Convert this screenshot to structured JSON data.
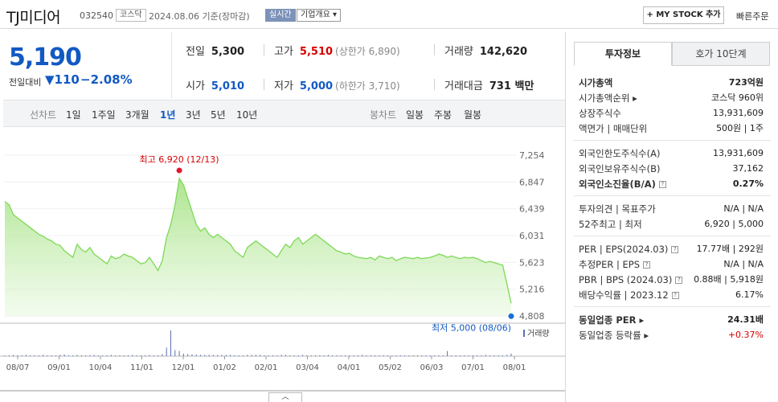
{
  "header": {
    "name": "TJ미디어",
    "code": "032540",
    "market": "코스닥",
    "date": "2024.08.06 기준(장마감)",
    "realtime": "실시간",
    "corp_info": "기업개요 ▾",
    "mystock": "+ MY STOCK 추가",
    "quick_order": "빠른주문"
  },
  "price": {
    "current": "5,190",
    "change_label": "전일대비",
    "change": "▼110",
    "change_pct": "−2.08%"
  },
  "stats": {
    "prev_label": "전일",
    "prev": "5,300",
    "high_label": "고가",
    "high": "5,510",
    "upper_limit": "(상한가 6,890)",
    "volume_label": "거래량",
    "volume": "142,620",
    "open_label": "시가",
    "open": "5,010",
    "low_label": "저가",
    "low": "5,000",
    "lower_limit": "(하한가 3,710)",
    "amount_label": "거래대금",
    "amount": "731 백만"
  },
  "tabs": {
    "line_label": "선차트",
    "periods": [
      "1일",
      "1주일",
      "3개월",
      "1년",
      "3년",
      "5년",
      "10년"
    ],
    "candle_label": "봉차트",
    "candles": [
      "일봉",
      "주봉",
      "월봉"
    ]
  },
  "chart_data": {
    "type": "area",
    "title": "",
    "high_annotation": "최고 6,920 (12/13)",
    "low_annotation": "최저 5,000 (08/06)",
    "volume_label": "거래량",
    "y_ticks": [
      "7,254",
      "6,847",
      "6,439",
      "6,031",
      "5,623",
      "5,216",
      "4,808"
    ],
    "ylim": [
      4808,
      7254
    ],
    "x_ticks": [
      "08/07",
      "09/01",
      "10/04",
      "11/01",
      "12/01",
      "01/02",
      "02/01",
      "03/04",
      "04/01",
      "05/02",
      "06/03",
      "07/01",
      "08/01"
    ],
    "series": [
      {
        "values": [
          6550,
          6500,
          6350,
          6300,
          6250,
          6200,
          6150,
          6100,
          6050,
          6020,
          5980,
          5950,
          5900,
          5880,
          5800,
          5750,
          5700,
          5900,
          5820,
          5780,
          5850,
          5750,
          5700,
          5650,
          5600,
          5720,
          5680,
          5700,
          5750,
          5720,
          5700,
          5650,
          5600,
          5620,
          5700,
          5600,
          5500,
          5650,
          6000,
          6200,
          6500,
          6900,
          6800,
          6600,
          6400,
          6200,
          6100,
          6150,
          6050,
          6000,
          6050,
          6000,
          5950,
          5900,
          5800,
          5750,
          5700,
          5850,
          5900,
          5950,
          5900,
          5850,
          5800,
          5750,
          5700,
          5800,
          5900,
          5850,
          5950,
          6000,
          5900,
          5950,
          6000,
          6050,
          6000,
          5950,
          5900,
          5850,
          5800,
          5780,
          5750,
          5760,
          5720,
          5700,
          5690,
          5680,
          5700,
          5660,
          5720,
          5700,
          5680,
          5700,
          5650,
          5680,
          5700,
          5690,
          5680,
          5700,
          5680,
          5690,
          5700,
          5720,
          5750,
          5730,
          5700,
          5720,
          5700,
          5680,
          5700,
          5690,
          5700,
          5680,
          5650,
          5620,
          5640,
          5620,
          5600,
          5580,
          5300,
          5000
        ],
        "color": "#7ed957"
      }
    ],
    "volume": [
      2,
      2,
      3,
      2,
      2,
      3,
      2,
      2,
      2,
      3,
      2,
      2,
      2,
      3,
      4,
      2,
      2,
      3,
      2,
      2,
      2,
      3,
      2,
      2,
      2,
      3,
      2,
      2,
      2,
      2,
      3,
      2,
      2,
      2,
      3,
      2,
      2,
      5,
      20,
      60,
      14,
      12,
      6,
      5,
      4,
      4,
      3,
      3,
      3,
      3,
      3,
      3,
      3,
      3,
      2,
      2,
      2,
      3,
      3,
      3,
      3,
      2,
      2,
      2,
      2,
      3,
      3,
      2,
      2,
      2,
      3,
      2,
      2,
      2,
      2,
      2,
      3,
      2,
      2,
      2,
      2,
      2,
      2,
      2,
      3,
      2,
      2,
      2,
      2,
      2,
      2,
      2,
      2,
      2,
      2,
      2,
      2,
      2,
      2,
      2,
      2,
      2,
      2,
      2,
      12,
      2,
      2,
      2,
      2,
      2,
      2,
      2,
      2,
      3,
      2,
      2,
      2,
      2,
      3,
      6
    ],
    "grid": true
  },
  "panel": {
    "tab_info": "투자정보",
    "tab_hoga": "호가 10단계",
    "rows1": [
      {
        "k": "시가총액",
        "v": "723억원",
        "bold": true
      },
      {
        "k": "시가총액순위 ▸",
        "v": "코스닥 960위"
      },
      {
        "k": "상장주식수",
        "v": "13,931,609"
      },
      {
        "k": "액면가 | 매매단위",
        "v": "500원 | 1주"
      }
    ],
    "rows2": [
      {
        "k": "외국인한도주식수(A)",
        "v": "13,931,609"
      },
      {
        "k": "외국인보유주식수(B)",
        "v": "37,162"
      },
      {
        "k": "외국인소진율(B/A)",
        "v": "0.27%",
        "bold": true,
        "q": true
      }
    ],
    "rows3": [
      {
        "k": "투자의견 | 목표주가",
        "v": "N/A | N/A"
      },
      {
        "k": "52주최고 | 최저",
        "v": "6,920 | 5,000"
      }
    ],
    "rows4": [
      {
        "k": "PER | EPS(2024.03)",
        "v": "17.77배 | 292원",
        "q": true
      },
      {
        "k": "추정PER | EPS",
        "v": "N/A | N/A",
        "q": true
      },
      {
        "k": "PBR | BPS (2024.03)",
        "v": "0.88배 | 5,918원",
        "q": true
      },
      {
        "k": "배당수익률 | 2023.12",
        "v": "6.17%",
        "q": true
      }
    ],
    "rows5": [
      {
        "k": "동일업종 PER ▸",
        "v": "24.31배",
        "bold": true
      },
      {
        "k": "동일업종 등락률 ▸",
        "v": "+0.37%",
        "up": true
      }
    ]
  },
  "handle": "︿"
}
